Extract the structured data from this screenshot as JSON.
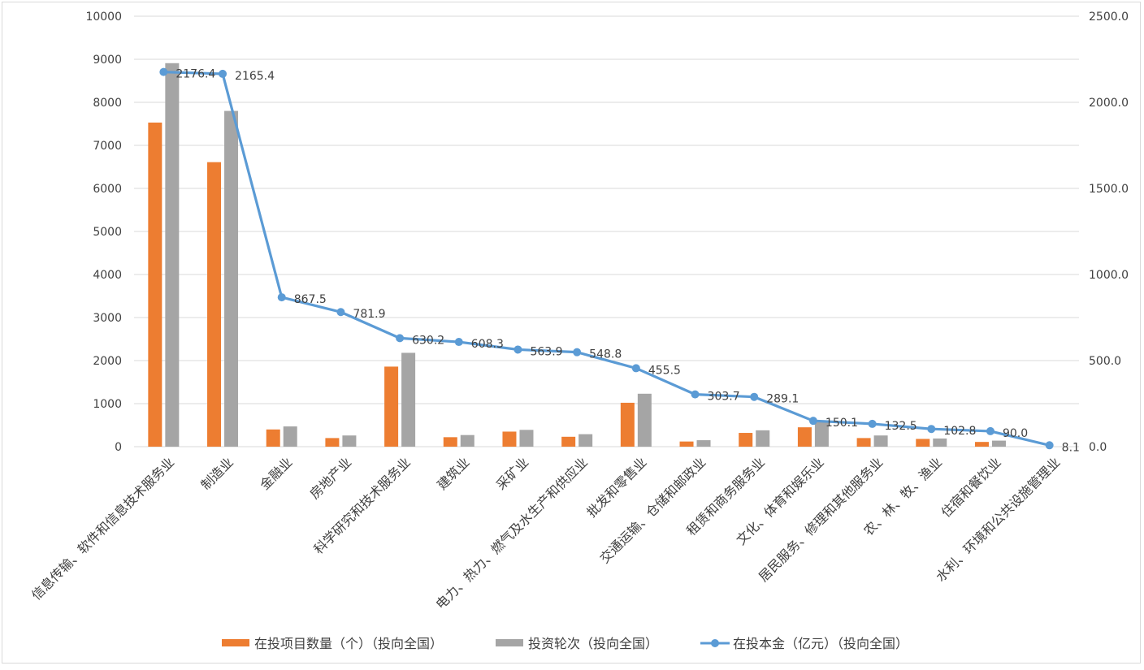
{
  "chart_data": {
    "type": "bar+line",
    "categories": [
      "信息传输、软件和信息技术服务业",
      "制造业",
      "金融业",
      "房地产业",
      "科学研究和技术服务业",
      "建筑业",
      "采矿业",
      "电力、热力、燃气及水生产和供应业",
      "批发和零售业",
      "交通运输、仓储和邮政业",
      "租赁和商务服务业",
      "文化、体育和娱乐业",
      "居民服务、修理和其他服务业",
      "农、林、牧、渔业",
      "住宿和餐饮业",
      "水利、环境和公共设施管理业"
    ],
    "series": [
      {
        "name": "在投项目数量（个）（投向全国）",
        "type": "bar",
        "axis": "left",
        "color": "#ED7D31",
        "values": [
          7530,
          6610,
          400,
          200,
          1860,
          220,
          350,
          230,
          1020,
          120,
          320,
          450,
          200,
          180,
          110,
          null
        ]
      },
      {
        "name": "投资轮次（投向全国）",
        "type": "bar",
        "axis": "left",
        "color": "#A5A5A5",
        "values": [
          8910,
          7800,
          470,
          260,
          2180,
          270,
          390,
          290,
          1230,
          150,
          380,
          600,
          260,
          190,
          140,
          null
        ]
      },
      {
        "name": "在投本金（亿元）（投向全国）",
        "type": "line",
        "axis": "right",
        "color": "#5B9BD5",
        "values": [
          2176.4,
          2165.4,
          867.5,
          781.9,
          630.2,
          608.3,
          563.9,
          548.8,
          455.5,
          303.7,
          289.1,
          150.1,
          132.5,
          102.8,
          90.0,
          8.1
        ],
        "labels": [
          "2176.4",
          "2165.4",
          "867.5",
          "781.9",
          "630.2",
          "608.3",
          "563.9",
          "548.8",
          "455.5",
          "303.7",
          "289.1",
          "150.1",
          "132.5",
          "102.8",
          "90.0",
          "8.1"
        ]
      }
    ],
    "y_left": {
      "ylim": [
        0,
        10000
      ],
      "ticks": [
        "0",
        "1000",
        "2000",
        "3000",
        "4000",
        "5000",
        "6000",
        "7000",
        "8000",
        "9000",
        "10000"
      ]
    },
    "y_right": {
      "ylim": [
        0,
        2500
      ],
      "ticks": [
        "0.0",
        "500.0",
        "1000.0",
        "1500.0",
        "2000.0",
        "2500.0"
      ]
    },
    "grid": true,
    "legend": "bottom"
  }
}
